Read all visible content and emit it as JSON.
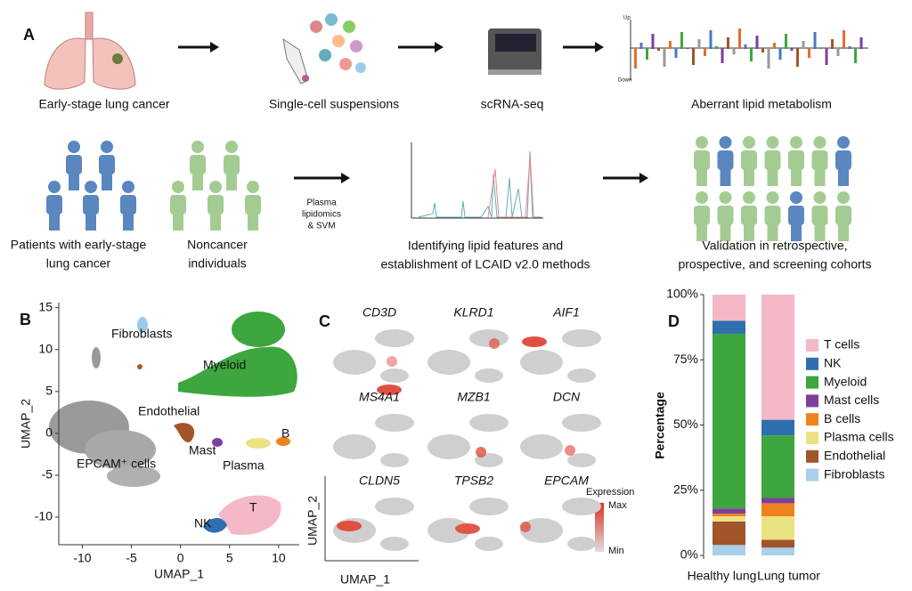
{
  "panel_labels": [
    "A",
    "B",
    "C",
    "D"
  ],
  "workflow": {
    "top_steps": [
      "Early-stage lung cancer",
      "Single-cell suspensions",
      "scRNA-seq",
      "Aberrant lipid metabolism"
    ],
    "mini_chart_labels": [
      "Up",
      "Down"
    ],
    "patients": [
      "Patients with early-stage",
      "lung cancer"
    ],
    "noncancer": [
      "Noncancer",
      "individuals"
    ],
    "method": [
      "Plasma",
      "lipidomics",
      "& SVM"
    ],
    "identify": [
      "Identifying lipid features and",
      "establishment of LCAID v2.0 methods"
    ],
    "validation": [
      "Validation  in retrospective,",
      "prospective, and screening cohorts"
    ]
  },
  "panel_c": {
    "genes": [
      "CD3D",
      "KLRD1",
      "AIF1",
      "MS4A1",
      "MZB1",
      "DCN",
      "CLDN5",
      "TPSB2",
      "EPCAM"
    ],
    "ylabel": "UMAP_2",
    "xlabel": "UMAP_1",
    "legend_title": "Expression",
    "legend_max": "Max",
    "legend_min": "Min"
  },
  "chart_data": [
    {
      "type": "scatter",
      "xlabel": "UMAP_1",
      "ylabel": "UMAP_2",
      "xlim": [
        -12.4,
        12.1
      ],
      "ylim": [
        -13.3,
        15.6
      ],
      "xticks": [
        -10,
        -5,
        0,
        5,
        10
      ],
      "yticks": [
        -10,
        -5,
        0,
        5,
        10,
        15
      ],
      "annotations": [
        "Fibroblasts",
        "Myeloid",
        "Endothelial",
        "B",
        "Mast",
        "Plasma",
        "EPCAM⁺ cells",
        "NK",
        "T"
      ]
    },
    {
      "type": "bar",
      "stacked": true,
      "ylabel": "Percentage",
      "categories": [
        "Healthy lung",
        "Lung tumor"
      ],
      "ylim": [
        0,
        100
      ],
      "yticks": [
        {
          "value": 0,
          "label": "0%"
        },
        {
          "value": 25,
          "label": "25%"
        },
        {
          "value": 50,
          "label": "50%"
        },
        {
          "value": 75,
          "label": "75%"
        },
        {
          "value": 100,
          "label": "100%"
        }
      ],
      "series": [
        {
          "name": "T cells",
          "color": "#f5b8c6",
          "values": [
            10,
            48
          ]
        },
        {
          "name": "NK",
          "color": "#2f6fae",
          "values": [
            5,
            6
          ]
        },
        {
          "name": "Myeloid",
          "color": "#3ea63e",
          "values": [
            67,
            24
          ]
        },
        {
          "name": "Mast cells",
          "color": "#7d3f9c",
          "values": [
            2,
            2
          ]
        },
        {
          "name": "B cells",
          "color": "#f0821e",
          "values": [
            1,
            5
          ]
        },
        {
          "name": "Plasma cells",
          "color": "#ebe381",
          "values": [
            2,
            9
          ]
        },
        {
          "name": "Endothelial",
          "color": "#a2542a",
          "values": [
            9,
            3
          ]
        },
        {
          "name": "Fibroblasts",
          "color": "#a8d0ea",
          "values": [
            4,
            3
          ]
        }
      ]
    }
  ]
}
